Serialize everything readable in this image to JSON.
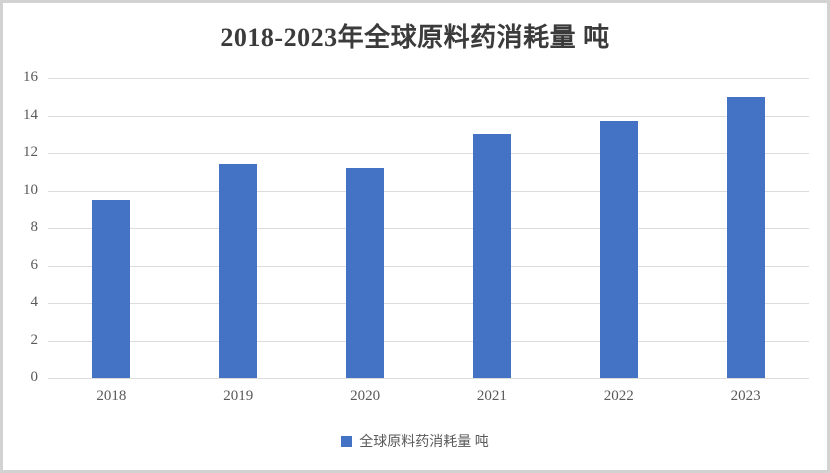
{
  "chart_data": {
    "type": "bar",
    "title": "2018-2023年全球原料药消耗量 吨",
    "series_name": "全球原料药消耗量 吨",
    "categories": [
      "2018",
      "2019",
      "2020",
      "2021",
      "2022",
      "2023"
    ],
    "values": [
      9.5,
      11.4,
      11.2,
      13.0,
      13.7,
      15.0
    ],
    "xlabel": "",
    "ylabel": "",
    "ylim": [
      0,
      16
    ],
    "yticks": [
      0,
      2,
      4,
      6,
      8,
      10,
      12,
      14,
      16
    ],
    "grid": true,
    "legend_position": "bottom",
    "colors": {
      "bar": "#4472C4",
      "gridline": "#DCDCDC",
      "axis_text": "#595959",
      "title_text": "#3B3B3B",
      "frame_border": "#D2D2D2"
    }
  }
}
